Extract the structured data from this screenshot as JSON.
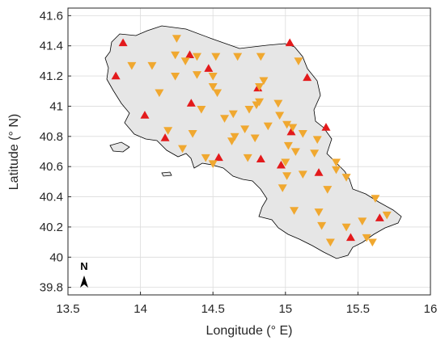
{
  "chart_data": {
    "type": "scatter",
    "title": "",
    "xlabel": "Longitude (° E)",
    "ylabel": "Latitude (° N)",
    "xlim": [
      13.5,
      16
    ],
    "ylim": [
      39.75,
      41.65
    ],
    "x_ticks": [
      "13.5",
      "14",
      "14.5",
      "15",
      "15.5",
      "16"
    ],
    "y_ticks": [
      "39.8",
      "40",
      "40.2",
      "40.4",
      "40.6",
      "40.8",
      "41",
      "41.2",
      "41.4",
      "41.6"
    ],
    "grid": true,
    "legend": "none",
    "north_arrow_label": "N",
    "region_fill": "#e6e6e6",
    "region_outline": "#000000",
    "series": [
      {
        "marker": "triangle-up",
        "color": "#e31a1c",
        "points": [
          [
            13.88,
            41.42
          ],
          [
            13.83,
            41.2
          ],
          [
            14.03,
            40.94
          ],
          [
            14.17,
            40.79
          ],
          [
            14.34,
            41.34
          ],
          [
            14.35,
            41.02
          ],
          [
            14.47,
            41.25
          ],
          [
            14.54,
            40.66
          ],
          [
            14.81,
            41.12
          ],
          [
            14.83,
            40.65
          ],
          [
            14.97,
            40.61
          ],
          [
            15.03,
            41.42
          ],
          [
            15.15,
            41.19
          ],
          [
            15.04,
            40.83
          ],
          [
            15.28,
            40.86
          ],
          [
            15.23,
            40.56
          ],
          [
            15.45,
            40.13
          ],
          [
            15.65,
            40.26
          ]
        ]
      },
      {
        "marker": "triangle-down",
        "color": "#f0a830",
        "points": [
          [
            14.25,
            41.45
          ],
          [
            14.24,
            41.34
          ],
          [
            14.31,
            41.3
          ],
          [
            14.24,
            41.2
          ],
          [
            14.39,
            41.21
          ],
          [
            14.5,
            41.2
          ],
          [
            14.5,
            41.13
          ],
          [
            14.52,
            41.33
          ],
          [
            14.67,
            41.33
          ],
          [
            14.53,
            41.09
          ],
          [
            14.08,
            41.27
          ],
          [
            14.13,
            41.09
          ],
          [
            14.42,
            40.98
          ],
          [
            14.58,
            40.92
          ],
          [
            14.64,
            40.95
          ],
          [
            14.75,
            40.98
          ],
          [
            14.8,
            41.01
          ],
          [
            14.82,
            41.13
          ],
          [
            14.83,
            41.33
          ],
          [
            14.85,
            41.17
          ],
          [
            14.82,
            41.03
          ],
          [
            14.95,
            41.02
          ],
          [
            14.96,
            40.94
          ],
          [
            15.01,
            40.88
          ],
          [
            15.05,
            40.86
          ],
          [
            14.88,
            40.87
          ],
          [
            14.72,
            40.85
          ],
          [
            14.65,
            40.8
          ],
          [
            14.63,
            40.77
          ],
          [
            14.79,
            40.79
          ],
          [
            14.36,
            40.82
          ],
          [
            14.29,
            40.72
          ],
          [
            14.45,
            40.66
          ],
          [
            14.5,
            40.62
          ],
          [
            14.74,
            40.66
          ],
          [
            15.02,
            40.74
          ],
          [
            15.07,
            40.7
          ],
          [
            15.12,
            40.82
          ],
          [
            15.22,
            40.78
          ],
          [
            15.2,
            40.69
          ],
          [
            15.12,
            40.55
          ],
          [
            15.01,
            40.54
          ],
          [
            14.98,
            40.46
          ],
          [
            15.06,
            40.31
          ],
          [
            15.23,
            40.3
          ],
          [
            15.25,
            40.21
          ],
          [
            15.31,
            40.1
          ],
          [
            15.35,
            40.63
          ],
          [
            15.35,
            40.58
          ],
          [
            15.42,
            40.53
          ],
          [
            15.29,
            40.45
          ],
          [
            15.42,
            40.2
          ],
          [
            15.53,
            40.24
          ],
          [
            15.56,
            40.13
          ],
          [
            15.6,
            40.1
          ],
          [
            15.62,
            40.39
          ],
          [
            15.7,
            40.28
          ],
          [
            15.09,
            41.3
          ],
          [
            15.0,
            40.63
          ],
          [
            14.19,
            40.84
          ],
          [
            13.94,
            41.27
          ],
          [
            14.39,
            41.33
          ]
        ]
      }
    ]
  }
}
